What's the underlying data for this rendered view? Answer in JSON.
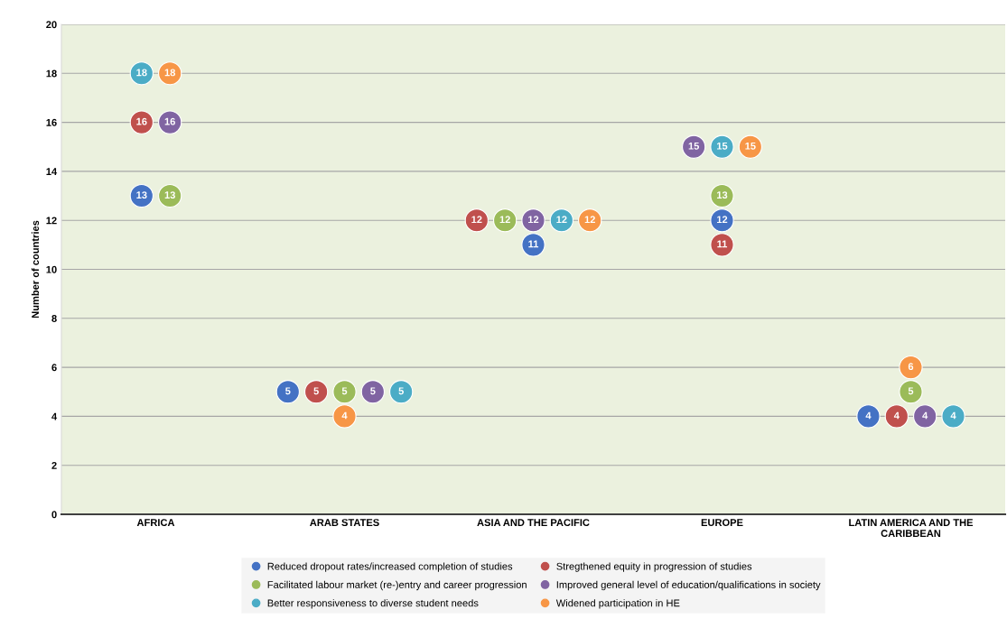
{
  "chart_data": {
    "type": "scatter",
    "ylabel": "Number of countries",
    "categories": [
      "AFRICA",
      "ARAB STATES",
      "ASIA AND THE PACIFIC",
      "EUROPE",
      "LATIN AMERICA AND THE\nCARIBBEAN"
    ],
    "ylim": [
      0,
      20
    ],
    "yticks": [
      0,
      2,
      4,
      6,
      8,
      10,
      12,
      14,
      16,
      18,
      20
    ],
    "grid": "y",
    "legend": "bottom",
    "marker": "circle",
    "data_labels": true,
    "series": [
      {
        "name": "Reduced dropout rates/increased completion of studies",
        "color": "#4472c4",
        "values": [
          13,
          5,
          11,
          12,
          4
        ]
      },
      {
        "name": "Stregthened equity in progression of studies",
        "color": "#c0504d",
        "values": [
          16,
          5,
          12,
          11,
          4
        ]
      },
      {
        "name": "Facilitated labour market (re-)entry and career progression",
        "color": "#9bbb59",
        "values": [
          13,
          5,
          12,
          13,
          5
        ]
      },
      {
        "name": "Improved general level of education/qualifications in society",
        "color": "#8064a2",
        "values": [
          16,
          5,
          12,
          15,
          4
        ]
      },
      {
        "name": "Better responsiveness to diverse student needs",
        "color": "#4bacc6",
        "values": [
          18,
          5,
          12,
          15,
          4
        ]
      },
      {
        "name": "Widened participation in HE",
        "color": "#f79646",
        "values": [
          18,
          4,
          12,
          15,
          6
        ]
      }
    ]
  }
}
